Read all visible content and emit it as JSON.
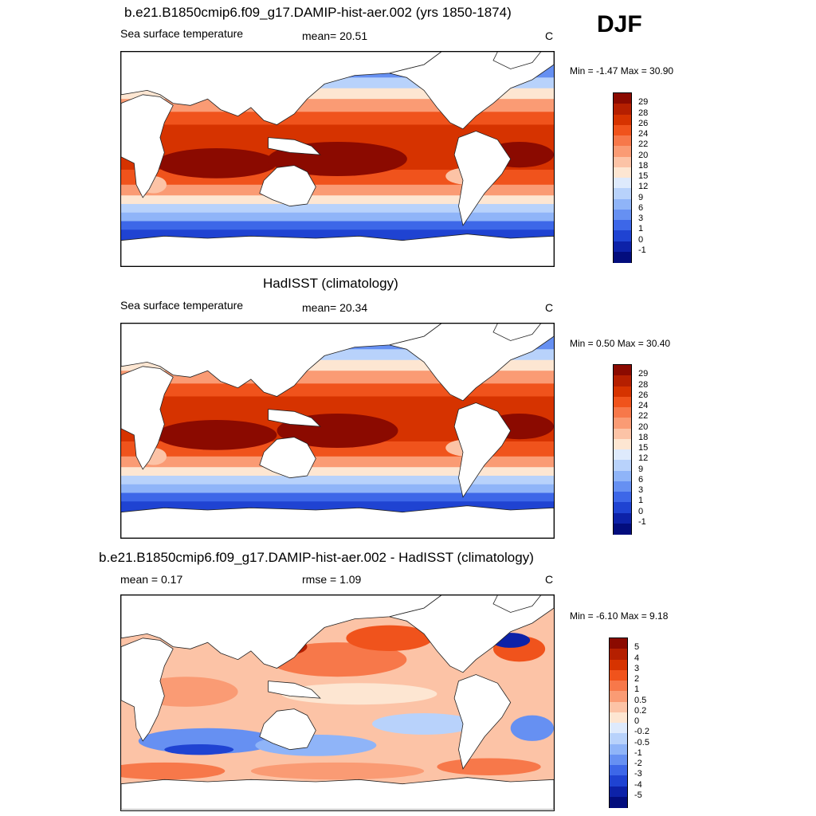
{
  "season": "DJF",
  "panels": [
    {
      "title": "b.e21.B1850cmip6.f09_g17.DAMIP-hist-aer.002 (yrs 1850-1874)",
      "left": "Sea surface temperature",
      "center": "mean=  20.51",
      "units": "C",
      "minmax": "Min =  -1.47 Max =  30.90",
      "mean": 20.51,
      "min": -1.47,
      "max": 30.9
    },
    {
      "title": "HadISST (climatology)",
      "left": "Sea surface temperature",
      "center": "mean=  20.34",
      "units": "C",
      "minmax": "Min =   0.50 Max =  30.40",
      "mean": 20.34,
      "min": 0.5,
      "max": 30.4
    },
    {
      "title": "b.e21.B1850cmip6.f09_g17.DAMIP-hist-aer.002 - HadISST (climatology)",
      "left": "mean =   0.17",
      "center": "rmse =   1.09",
      "units": "C",
      "minmax": "Min =  -6.10 Max =   9.18",
      "mean": 0.17,
      "rmse": 1.09,
      "min": -6.1,
      "max": 9.18
    }
  ],
  "colorbars": {
    "sst": {
      "labels": [
        "29",
        "28",
        "26",
        "24",
        "22",
        "20",
        "18",
        "15",
        "12",
        "9",
        "6",
        "3",
        "1",
        "0",
        "-1"
      ],
      "colors": [
        "#8b0a00",
        "#b51f00",
        "#d63300",
        "#f0531c",
        "#f7784a",
        "#fa9b74",
        "#fcc3a6",
        "#fde6d2",
        "#deeafc",
        "#b8d2fb",
        "#8fb4f8",
        "#6690f2",
        "#3d67e8",
        "#1f43d2",
        "#0d22a8",
        "#030d7d"
      ]
    },
    "diff": {
      "labels": [
        "5",
        "4",
        "3",
        "2",
        "1",
        "0.5",
        "0.2",
        "0",
        "-0.2",
        "-0.5",
        "-1",
        "-2",
        "-3",
        "-4",
        "-5"
      ],
      "colors": [
        "#8b0a00",
        "#b51f00",
        "#d63300",
        "#f0531c",
        "#f7784a",
        "#fa9b74",
        "#fcc3a6",
        "#fde6d2",
        "#deeafc",
        "#b8d2fb",
        "#8fb4f8",
        "#6690f2",
        "#3d67e8",
        "#1f43d2",
        "#0d22a8",
        "#030d7d"
      ]
    }
  },
  "chart_data": [
    {
      "type": "heatmap",
      "title": "b.e21.B1850cmip6.f09_g17.DAMIP-hist-aer.002 (yrs 1850-1874)",
      "variable": "Sea surface temperature",
      "units": "C",
      "mean": 20.51,
      "min": -1.47,
      "max": 30.9,
      "colorbar_levels": [
        -1,
        0,
        1,
        3,
        6,
        9,
        12,
        15,
        18,
        20,
        22,
        24,
        26,
        28,
        29
      ],
      "xlim": [
        0,
        360
      ],
      "ylim": [
        -90,
        90
      ]
    },
    {
      "type": "heatmap",
      "title": "HadISST (climatology)",
      "variable": "Sea surface temperature",
      "units": "C",
      "mean": 20.34,
      "min": 0.5,
      "max": 30.4,
      "colorbar_levels": [
        -1,
        0,
        1,
        3,
        6,
        9,
        12,
        15,
        18,
        20,
        22,
        24,
        26,
        28,
        29
      ],
      "xlim": [
        0,
        360
      ],
      "ylim": [
        -90,
        90
      ]
    },
    {
      "type": "heatmap",
      "title": "b.e21.B1850cmip6.f09_g17.DAMIP-hist-aer.002 - HadISST (climatology)",
      "units": "C",
      "mean": 0.17,
      "rmse": 1.09,
      "min": -6.1,
      "max": 9.18,
      "colorbar_levels": [
        -5,
        -4,
        -3,
        -2,
        -1,
        -0.5,
        -0.2,
        0,
        0.2,
        0.5,
        1,
        2,
        3,
        4,
        5
      ],
      "xlim": [
        0,
        360
      ],
      "ylim": [
        -90,
        90
      ]
    }
  ]
}
